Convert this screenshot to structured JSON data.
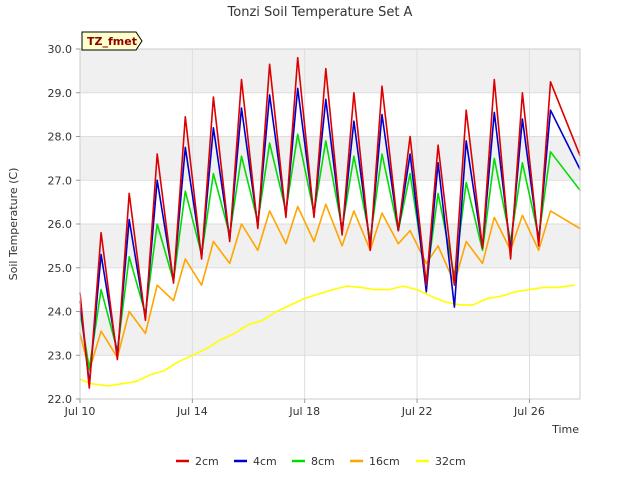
{
  "chart_data": {
    "type": "line",
    "title": "Tonzi Soil Temperature Set A",
    "xlabel": "Time",
    "ylabel": "Soil Temperature (C)",
    "badge": "TZ_fmet",
    "x_range_days": [
      10,
      27.8
    ],
    "xlim": [
      "Jul 10",
      "Jul 28"
    ],
    "ylim": [
      22.0,
      30.0
    ],
    "yticks": [
      22.0,
      23.0,
      24.0,
      25.0,
      26.0,
      27.0,
      28.0,
      29.0,
      30.0
    ],
    "xticks": [
      {
        "day": 10,
        "label": "Jul 10"
      },
      {
        "day": 14,
        "label": "Jul 14"
      },
      {
        "day": 18,
        "label": "Jul 18"
      },
      {
        "day": 22,
        "label": "Jul 22"
      },
      {
        "day": 26,
        "label": "Jul 26"
      }
    ],
    "grid": true,
    "legend_position": "bottom",
    "series": [
      {
        "name": "2cm",
        "color": "#dd0000",
        "min": [
          22.25,
          22.9,
          23.8,
          24.65,
          25.2,
          25.6,
          25.9,
          26.15,
          26.15,
          25.75,
          25.4,
          25.85,
          24.6,
          24.6,
          25.45,
          25.2,
          25.5
        ],
        "max": [
          25.8,
          26.7,
          27.6,
          28.45,
          28.9,
          29.3,
          29.65,
          29.8,
          29.55,
          29.0,
          29.15,
          28.0,
          27.8,
          28.6,
          29.3,
          29.0,
          29.25
        ]
      },
      {
        "name": "4cm",
        "color": "#0000cc",
        "min": [
          22.35,
          23.0,
          23.85,
          24.7,
          25.25,
          25.65,
          25.95,
          26.2,
          26.2,
          25.8,
          25.5,
          25.85,
          24.45,
          24.1,
          25.45,
          25.4,
          25.6
        ],
        "max": [
          25.3,
          26.1,
          27.0,
          27.75,
          28.2,
          28.65,
          28.95,
          29.1,
          28.85,
          28.35,
          28.5,
          27.6,
          27.4,
          27.9,
          28.55,
          28.4,
          28.6
        ]
      },
      {
        "name": "8cm",
        "color": "#00dd00",
        "min": [
          22.7,
          23.1,
          23.95,
          24.7,
          25.3,
          25.75,
          26.05,
          26.3,
          26.25,
          25.9,
          25.65,
          25.85,
          24.7,
          24.8,
          25.4,
          25.6,
          25.7
        ],
        "max": [
          24.5,
          25.25,
          26.0,
          26.75,
          27.15,
          27.55,
          27.85,
          28.05,
          27.9,
          27.55,
          27.6,
          27.15,
          26.7,
          26.95,
          27.5,
          27.4,
          27.65
        ]
      },
      {
        "name": "16cm",
        "color": "#ffa500",
        "min": [
          22.65,
          22.95,
          23.5,
          24.25,
          24.6,
          25.1,
          25.4,
          25.55,
          25.6,
          25.5,
          25.4,
          25.55,
          25.1,
          24.65,
          25.1,
          25.4,
          25.4
        ],
        "max": [
          23.55,
          24.0,
          24.6,
          25.2,
          25.6,
          26.0,
          26.3,
          26.4,
          26.45,
          26.3,
          26.25,
          25.85,
          25.5,
          25.6,
          26.15,
          26.2,
          26.3
        ]
      },
      {
        "name": "32cm",
        "color": "#ffff00",
        "points": [
          [
            10.0,
            22.45
          ],
          [
            10.4,
            22.35
          ],
          [
            11.0,
            22.3
          ],
          [
            11.5,
            22.35
          ],
          [
            12.0,
            22.4
          ],
          [
            12.5,
            22.55
          ],
          [
            13.0,
            22.65
          ],
          [
            13.5,
            22.85
          ],
          [
            14.0,
            23.0
          ],
          [
            14.5,
            23.15
          ],
          [
            15.0,
            23.35
          ],
          [
            15.5,
            23.5
          ],
          [
            16.0,
            23.7
          ],
          [
            16.5,
            23.8
          ],
          [
            17.0,
            24.0
          ],
          [
            17.5,
            24.15
          ],
          [
            18.0,
            24.3
          ],
          [
            18.5,
            24.4
          ],
          [
            19.0,
            24.5
          ],
          [
            19.5,
            24.58
          ],
          [
            20.0,
            24.55
          ],
          [
            20.5,
            24.5
          ],
          [
            21.0,
            24.5
          ],
          [
            21.5,
            24.58
          ],
          [
            22.0,
            24.5
          ],
          [
            22.5,
            24.35
          ],
          [
            23.0,
            24.22
          ],
          [
            23.5,
            24.15
          ],
          [
            24.0,
            24.15
          ],
          [
            24.5,
            24.3
          ],
          [
            25.0,
            24.35
          ],
          [
            25.5,
            24.45
          ],
          [
            26.0,
            24.5
          ],
          [
            26.5,
            24.55
          ],
          [
            27.0,
            24.55
          ],
          [
            27.6,
            24.6
          ]
        ]
      }
    ]
  }
}
